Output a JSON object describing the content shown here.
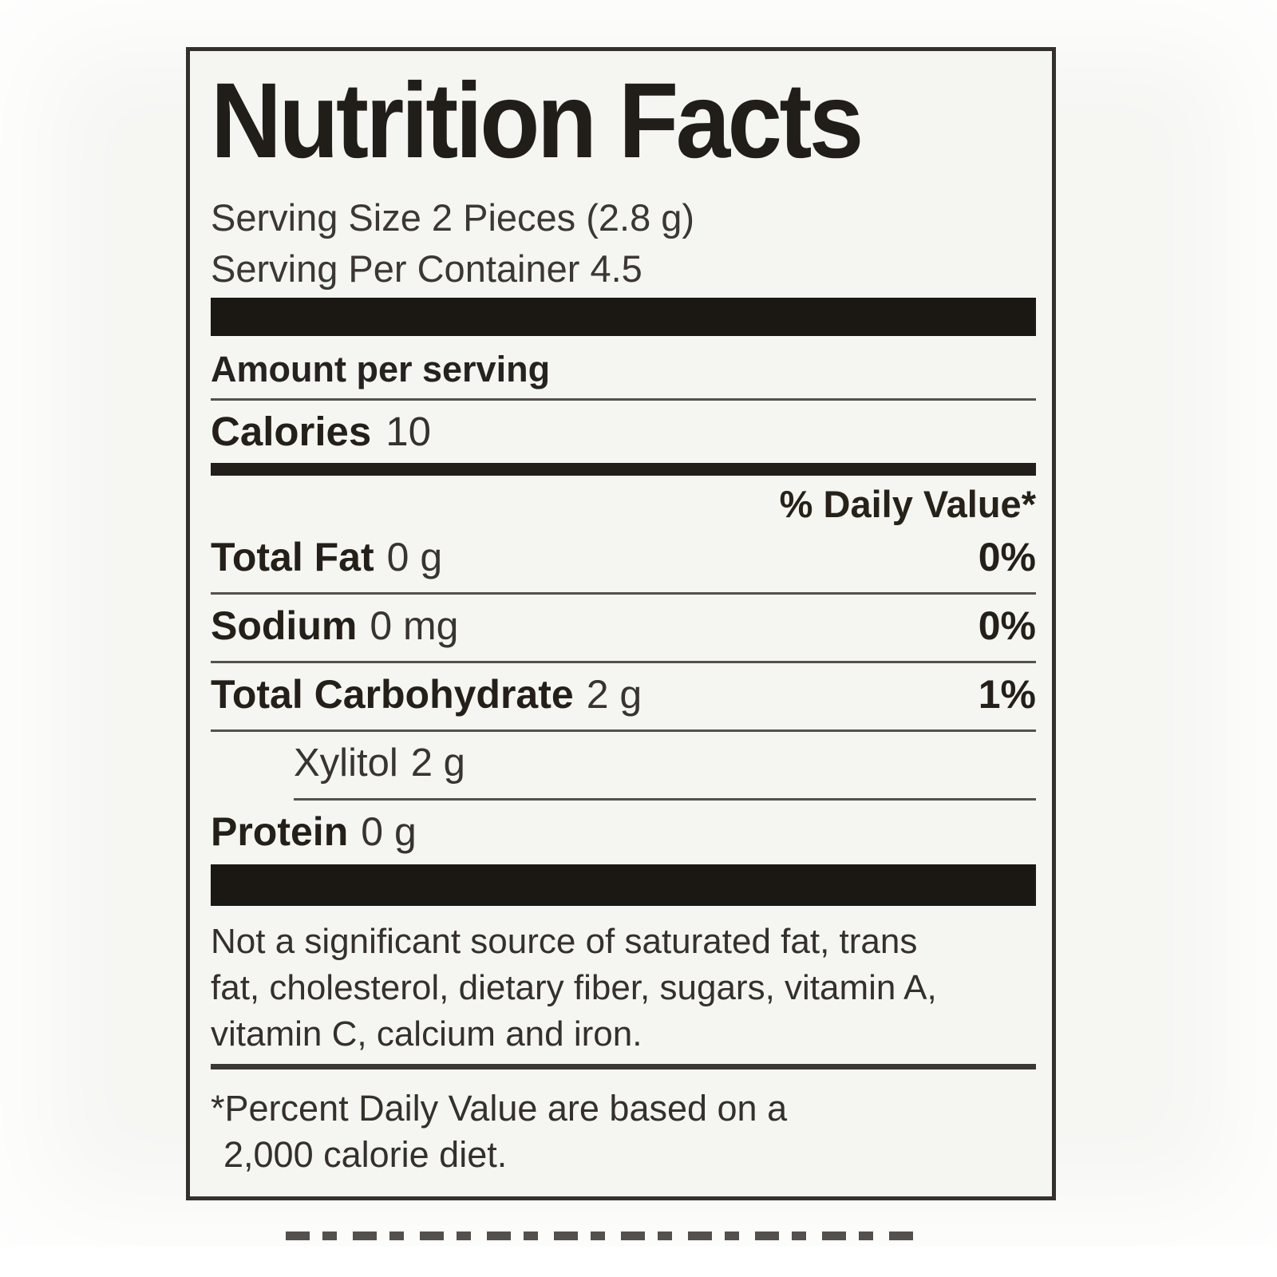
{
  "label": {
    "title": "Nutrition Facts",
    "serving_size": "Serving Size 2 Pieces (2.8 g)",
    "servings_per_container": "Serving Per Container 4.5",
    "amount_per_serving": "Amount per serving",
    "calories_label": "Calories",
    "calories_value": "10",
    "daily_value_header": "% Daily Value*",
    "rows": [
      {
        "name": "Total Fat",
        "amount": "0 g",
        "dv": "0%"
      },
      {
        "name": "Sodium",
        "amount": "0 mg",
        "dv": "0%"
      },
      {
        "name": "Total Carbohydrate",
        "amount": "2 g",
        "dv": "1%"
      },
      {
        "name": "Xylitol",
        "amount": "2 g",
        "dv": ""
      },
      {
        "name": "Protein",
        "amount": "0 g",
        "dv": ""
      }
    ],
    "disclaimer_lines": [
      "Not a significant source of saturated fat, trans",
      "fat, cholesterol, dietary fiber, sugars, vitamin A,",
      "vitamin C, calcium and iron."
    ],
    "footnote_lines": [
      "*Percent Daily Value are based on a",
      "2,000 calorie diet."
    ]
  },
  "colors": {
    "ink": "#211d19",
    "bar": "#1b1712",
    "label_background": "#f5f5f2",
    "page_background": "#f6f6f3",
    "rule": "#55514c"
  }
}
